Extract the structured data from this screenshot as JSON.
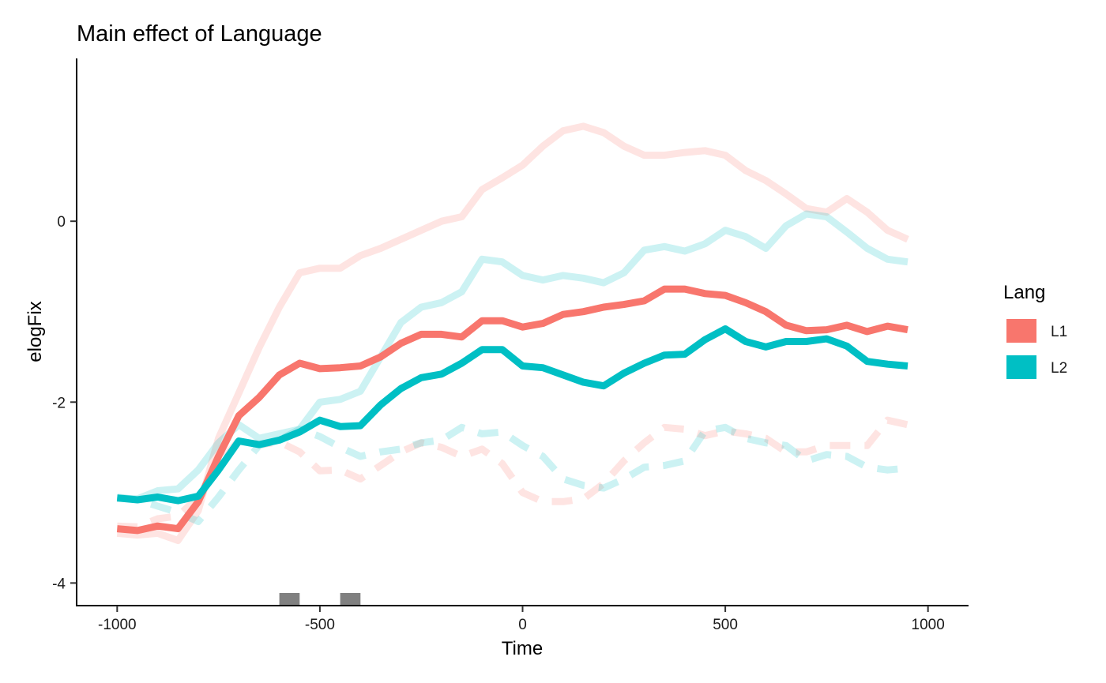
{
  "chart_data": {
    "type": "line",
    "title": "Main effect of Language",
    "xlabel": "Time",
    "ylabel": "elogFix",
    "xlim": [
      -1100,
      1100
    ],
    "ylim": [
      -4.25,
      1.8
    ],
    "x_ticks": [
      -1000,
      -500,
      0,
      500,
      1000
    ],
    "x_tick_labels": [
      "-1000",
      "-500",
      "0",
      "500",
      "1000"
    ],
    "y_ticks": [
      -4,
      -2,
      0
    ],
    "y_tick_labels": [
      "-4",
      "-2",
      "0"
    ],
    "grid": false,
    "legend": {
      "title": "Lang",
      "position": "right",
      "entries": [
        {
          "label": "L1",
          "color": "#F8766D"
        },
        {
          "label": "L2",
          "color": "#00BFC4"
        }
      ]
    },
    "x": [
      -1000,
      -950,
      -900,
      -850,
      -800,
      -750,
      -700,
      -650,
      -600,
      -550,
      -500,
      -450,
      -400,
      -350,
      -300,
      -250,
      -200,
      -150,
      -100,
      -50,
      0,
      50,
      100,
      150,
      200,
      250,
      300,
      350,
      400,
      450,
      500,
      550,
      600,
      650,
      700,
      750,
      800,
      850,
      900,
      950
    ],
    "series": [
      {
        "name": "L1",
        "role": "main",
        "color": "#F8766D",
        "values": [
          -3.4,
          -3.42,
          -3.37,
          -3.4,
          -3.1,
          -2.6,
          -2.15,
          -1.95,
          -1.7,
          -1.57,
          -1.63,
          -1.62,
          -1.6,
          -1.5,
          -1.35,
          -1.25,
          -1.25,
          -1.28,
          -1.1,
          -1.1,
          -1.17,
          -1.13,
          -1.03,
          -1.0,
          -0.95,
          -0.92,
          -0.88,
          -0.75,
          -0.75,
          -0.8,
          -0.82,
          -0.9,
          -1.0,
          -1.15,
          -1.21,
          -1.2,
          -1.15,
          -1.22,
          -1.16,
          -1.2
        ]
      },
      {
        "name": "L2",
        "role": "main",
        "color": "#00BFC4",
        "values": [
          -3.06,
          -3.08,
          -3.05,
          -3.09,
          -3.04,
          -2.75,
          -2.43,
          -2.47,
          -2.42,
          -2.33,
          -2.2,
          -2.27,
          -2.26,
          -2.03,
          -1.85,
          -1.73,
          -1.69,
          -1.57,
          -1.42,
          -1.42,
          -1.6,
          -1.62,
          -1.7,
          -1.78,
          -1.82,
          -1.68,
          -1.57,
          -1.48,
          -1.47,
          -1.31,
          -1.19,
          -1.33,
          -1.39,
          -1.33,
          -1.33,
          -1.3,
          -1.38,
          -1.55,
          -1.58,
          -1.6
        ]
      },
      {
        "name": "L1",
        "role": "upper",
        "color": "#F8766D",
        "values": [
          -3.45,
          -3.47,
          -3.45,
          -3.53,
          -3.2,
          -2.4,
          -1.9,
          -1.4,
          -0.95,
          -0.57,
          -0.52,
          -0.52,
          -0.38,
          -0.3,
          -0.2,
          -0.1,
          0.0,
          0.05,
          0.35,
          0.48,
          0.62,
          0.83,
          1.0,
          1.05,
          0.98,
          0.83,
          0.73,
          0.73,
          0.76,
          0.78,
          0.73,
          0.56,
          0.45,
          0.3,
          0.14,
          0.1,
          0.25,
          0.1,
          -0.1,
          -0.2
        ]
      },
      {
        "name": "L2",
        "role": "upper",
        "color": "#00BFC4",
        "values": [
          -3.06,
          -3.07,
          -2.98,
          -2.96,
          -2.75,
          -2.45,
          -2.25,
          -2.4,
          -2.35,
          -2.3,
          -2.0,
          -1.97,
          -1.88,
          -1.5,
          -1.12,
          -0.95,
          -0.9,
          -0.78,
          -0.42,
          -0.45,
          -0.6,
          -0.65,
          -0.6,
          -0.63,
          -0.68,
          -0.57,
          -0.32,
          -0.28,
          -0.33,
          -0.25,
          -0.1,
          -0.17,
          -0.3,
          -0.05,
          0.08,
          0.05,
          -0.12,
          -0.3,
          -0.42,
          -0.45
        ]
      },
      {
        "name": "L1",
        "role": "lower",
        "color": "#F8766D",
        "values": [
          -3.37,
          -3.38,
          -3.29,
          -3.26,
          -3.05,
          -2.7,
          -2.42,
          -2.47,
          -2.44,
          -2.55,
          -2.76,
          -2.75,
          -2.85,
          -2.7,
          -2.55,
          -2.45,
          -2.5,
          -2.6,
          -2.52,
          -2.68,
          -3.0,
          -3.1,
          -3.1,
          -3.07,
          -2.9,
          -2.65,
          -2.45,
          -2.28,
          -2.3,
          -2.37,
          -2.32,
          -2.35,
          -2.4,
          -2.55,
          -2.55,
          -2.48,
          -2.48,
          -2.48,
          -2.2,
          -2.25
        ]
      },
      {
        "name": "L2",
        "role": "lower",
        "color": "#00BFC4",
        "values": [
          -3.05,
          -3.08,
          -3.15,
          -3.22,
          -3.32,
          -3.05,
          -2.75,
          -2.48,
          -2.42,
          -2.3,
          -2.38,
          -2.5,
          -2.6,
          -2.55,
          -2.52,
          -2.45,
          -2.42,
          -2.28,
          -2.35,
          -2.33,
          -2.48,
          -2.6,
          -2.85,
          -2.92,
          -2.95,
          -2.85,
          -2.72,
          -2.7,
          -2.65,
          -2.32,
          -2.28,
          -2.4,
          -2.45,
          -2.48,
          -2.65,
          -2.58,
          -2.6,
          -2.72,
          -2.75,
          -2.73
        ]
      }
    ],
    "significance_bars": [
      {
        "x_start": -600,
        "x_end": -550,
        "color": "#808080"
      },
      {
        "x_start": -450,
        "x_end": -400,
        "color": "#808080"
      }
    ]
  }
}
